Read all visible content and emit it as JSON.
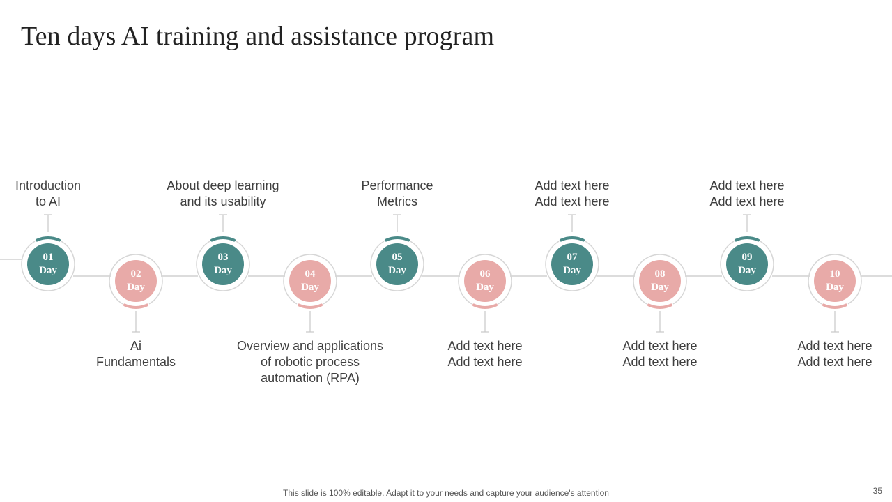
{
  "slide": {
    "title": "Ten days AI training and assistance program",
    "footer": "This slide is 100% editable. Adapt it to your needs and capture your audience's attention",
    "page_number": "35"
  },
  "colors": {
    "teal": "#4a8a88",
    "pink": "#e8aaa8",
    "line": "#c8c8c8"
  },
  "days": [
    {
      "num": "01",
      "unit": "Day",
      "label": "Introduction\nto AI",
      "color": "teal"
    },
    {
      "num": "02",
      "unit": "Day",
      "label": "Ai\nFundamentals",
      "color": "pink"
    },
    {
      "num": "03",
      "unit": "Day",
      "label": "About deep learning\nand its usability",
      "color": "teal"
    },
    {
      "num": "04",
      "unit": "Day",
      "label": "Overview and applications\nof robotic process\nautomation (RPA)",
      "color": "pink"
    },
    {
      "num": "05",
      "unit": "Day",
      "label": "Performance\nMetrics",
      "color": "teal"
    },
    {
      "num": "06",
      "unit": "Day",
      "label": "Add text here\nAdd text here",
      "color": "pink"
    },
    {
      "num": "07",
      "unit": "Day",
      "label": "Add text here\nAdd text here",
      "color": "teal"
    },
    {
      "num": "08",
      "unit": "Day",
      "label": "Add text here\nAdd text here",
      "color": "pink"
    },
    {
      "num": "09",
      "unit": "Day",
      "label": "Add text here\nAdd text here",
      "color": "teal"
    },
    {
      "num": "10",
      "unit": "Day",
      "label": "Add text here\nAdd text here",
      "color": "pink"
    }
  ]
}
